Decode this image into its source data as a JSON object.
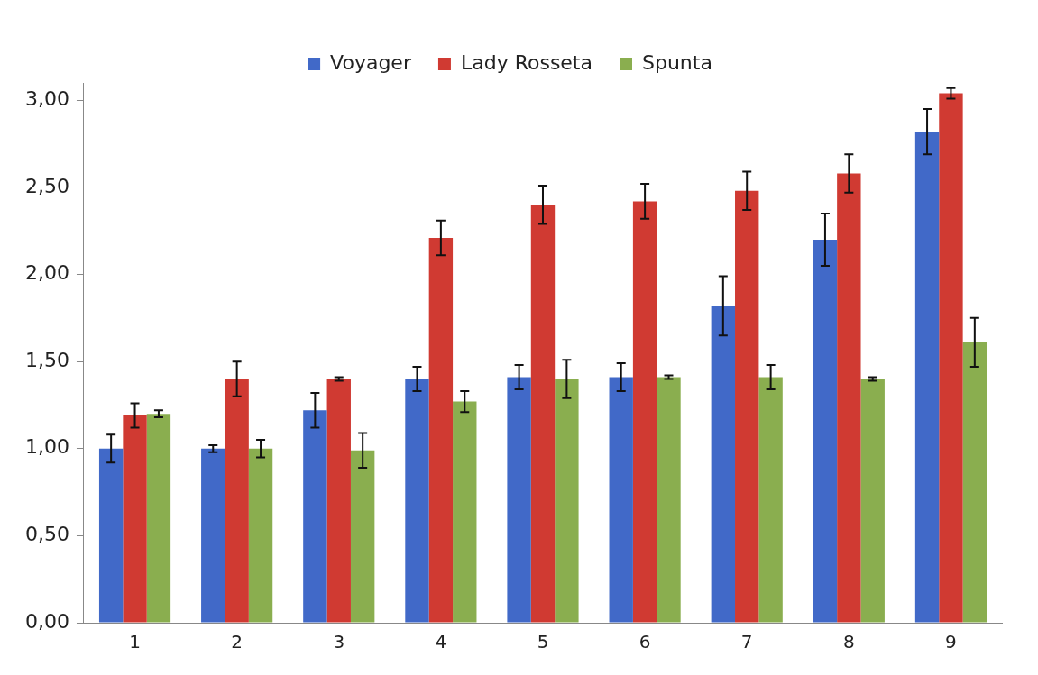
{
  "chart_data": {
    "type": "bar",
    "categories": [
      "1",
      "2",
      "3",
      "4",
      "5",
      "6",
      "7",
      "8",
      "9"
    ],
    "series": [
      {
        "name": "Voyager",
        "color": "#4169c8",
        "values": [
          1.0,
          1.0,
          1.22,
          1.4,
          1.41,
          1.41,
          1.82,
          2.2,
          2.82
        ],
        "errors": [
          0.08,
          0.02,
          0.1,
          0.07,
          0.07,
          0.08,
          0.17,
          0.15,
          0.13
        ]
      },
      {
        "name": "Lady Rosseta",
        "color": "#d03a32",
        "values": [
          1.19,
          1.4,
          1.4,
          2.21,
          2.4,
          2.42,
          2.48,
          2.58,
          3.04
        ],
        "errors": [
          0.07,
          0.1,
          0.01,
          0.1,
          0.11,
          0.1,
          0.11,
          0.11,
          0.03
        ]
      },
      {
        "name": "Spunta",
        "color": "#8aae4f",
        "values": [
          1.2,
          1.0,
          0.99,
          1.27,
          1.4,
          1.41,
          1.41,
          1.4,
          1.61
        ],
        "errors": [
          0.02,
          0.05,
          0.1,
          0.06,
          0.11,
          0.01,
          0.07,
          0.01,
          0.14
        ]
      }
    ],
    "ylim": [
      0,
      3.1
    ],
    "yticks": [
      {
        "value": 0,
        "label": "0,00"
      },
      {
        "value": 0.5,
        "label": "0,50"
      },
      {
        "value": 1,
        "label": "1,00"
      },
      {
        "value": 1.5,
        "label": "1,50"
      },
      {
        "value": 2,
        "label": "2,00"
      },
      {
        "value": 2.5,
        "label": "2,50"
      },
      {
        "value": 3,
        "label": "3,00"
      }
    ],
    "grid": false,
    "legend": "top"
  }
}
